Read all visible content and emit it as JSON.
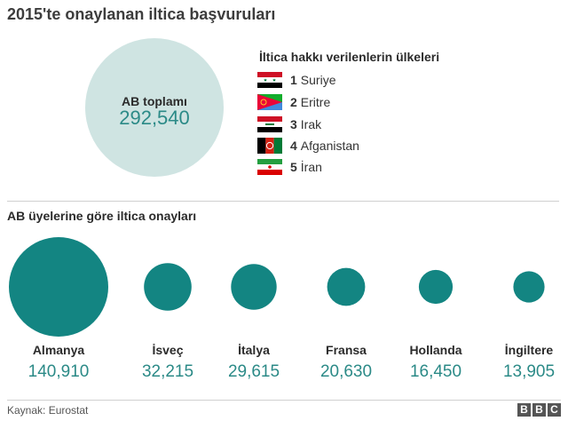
{
  "title": "2015'te onaylanan iltica başvuruları",
  "total": {
    "label": "AB toplamı",
    "value": "292,540"
  },
  "countries": {
    "title": "İltica hakkı verilenlerin ülkeleri",
    "items": [
      {
        "rank": "1",
        "name": "Suriye",
        "flag": "syria-flag-icon"
      },
      {
        "rank": "2",
        "name": "Eritre",
        "flag": "eritrea-flag-icon"
      },
      {
        "rank": "3",
        "name": "Irak",
        "flag": "iraq-flag-icon"
      },
      {
        "rank": "4",
        "name": "Afganistan",
        "flag": "afghanistan-flag-icon"
      },
      {
        "rank": "5",
        "name": "İran",
        "flag": "iran-flag-icon"
      }
    ]
  },
  "section_title": "AB üyelerine göre iltica onayları",
  "chart_data": {
    "type": "bubble",
    "title": "AB üyelerine göre iltica onayları",
    "categories": [
      "Almanya",
      "İsveç",
      "İtalya",
      "Fransa",
      "Hollanda",
      "İngiltere"
    ],
    "values": [
      140910,
      32215,
      29615,
      20630,
      16450,
      13905
    ],
    "value_labels": [
      "140,910",
      "32,215",
      "29,615",
      "20,630",
      "16,450",
      "13,905"
    ],
    "color": "#138582"
  },
  "source": "Kaynak: Eurostat",
  "logo": [
    "B",
    "B",
    "C"
  ]
}
